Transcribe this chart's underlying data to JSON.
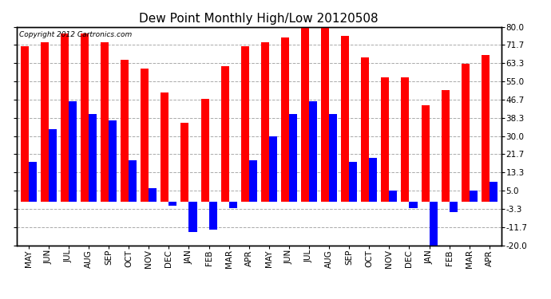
{
  "title": "Dew Point Monthly High/Low 20120508",
  "copyright": "Copyright 2012 Cartronics.com",
  "months": [
    "MAY",
    "JUN",
    "JUL",
    "AUG",
    "SEP",
    "OCT",
    "NOV",
    "DEC",
    "JAN",
    "FEB",
    "MAR",
    "APR",
    "MAY",
    "JUN",
    "JUL",
    "AUG",
    "SEP",
    "OCT",
    "NOV",
    "DEC",
    "JAN",
    "FEB",
    "MAR",
    "APR"
  ],
  "highs": [
    71,
    73,
    77,
    77,
    73,
    65,
    61,
    50,
    36,
    47,
    62,
    71,
    73,
    75,
    82,
    80,
    76,
    66,
    57,
    57,
    44,
    51,
    63,
    67
  ],
  "lows": [
    18,
    33,
    46,
    40,
    37,
    19,
    6,
    -2,
    -14,
    -13,
    -3,
    19,
    30,
    40,
    46,
    40,
    18,
    20,
    5,
    -3,
    -20,
    -5,
    5,
    9
  ],
  "high_color": "#ff0000",
  "low_color": "#0000ff",
  "bg_color": "#ffffff",
  "plot_bg_color": "#ffffff",
  "grid_color": "#aaaaaa",
  "ylim": [
    -20,
    80
  ],
  "yticks": [
    -20.0,
    -11.7,
    -3.3,
    5.0,
    13.3,
    21.7,
    30.0,
    38.3,
    46.7,
    55.0,
    63.3,
    71.7,
    80.0
  ],
  "bar_width": 0.4,
  "title_fontsize": 11,
  "tick_fontsize": 7.5,
  "copyright_fontsize": 6.5
}
